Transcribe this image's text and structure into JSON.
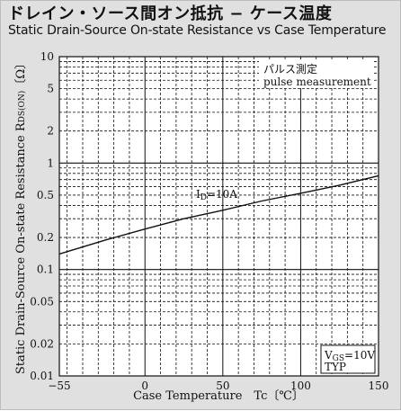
{
  "title_jp": "ドレイン・ソース間オン抵抗 − ケース温度",
  "title_en": "Static Drain-Source On-state Resistance vs Case Temperature",
  "chart_data": {
    "type": "line",
    "title": "ドレイン・ソース間オン抵抗 − ケース温度",
    "subtitle": "Static Drain-Source On-state Resistance vs Case Temperature",
    "xlabel": "Case Temperature　Tc〔℃〕",
    "ylabel": "Static Drain-Source On-state Resistance　RDS(ON)〔Ω〕",
    "ylabel_main": "Static Drain-Source On-state Resistance",
    "ylabel_symbol": "R",
    "ylabel_subscript": "DS(ON)",
    "ylabel_unit": "〔Ω〕",
    "xlim": [
      -55,
      150
    ],
    "ylim": [
      0.01,
      10
    ],
    "yscale": "log",
    "grid": true,
    "x_ticks": [
      -55,
      0,
      50,
      100,
      150
    ],
    "x_tick_labels": [
      "−55",
      "0",
      "50",
      "100",
      "150"
    ],
    "y_ticks": [
      0.01,
      0.02,
      0.05,
      0.1,
      0.2,
      0.5,
      1,
      2,
      5,
      10
    ],
    "y_tick_labels": [
      "0.01",
      "0.02",
      "0.05",
      "0.1",
      "0.2",
      "0.5",
      "1",
      "2",
      "5",
      "10"
    ],
    "series": [
      {
        "name": "ID=10A",
        "label_main": "I",
        "label_sub": "D",
        "label_rest": "=10A",
        "x": [
          -55,
          -25,
          0,
          25,
          50,
          75,
          100,
          125,
          150
        ],
        "y": [
          0.14,
          0.19,
          0.24,
          0.3,
          0.36,
          0.44,
          0.52,
          0.62,
          0.76
        ]
      }
    ],
    "annotations": {
      "pulse_jp": "パルス測定",
      "pulse_en": "pulse measurement",
      "vgs_main": "V",
      "vgs_sub": "GS",
      "vgs_rest": "=10V",
      "typ": "TYP"
    },
    "colors": {
      "background": "#e0e0e0",
      "plot_background": "#ffffff",
      "line": "#111111"
    }
  }
}
